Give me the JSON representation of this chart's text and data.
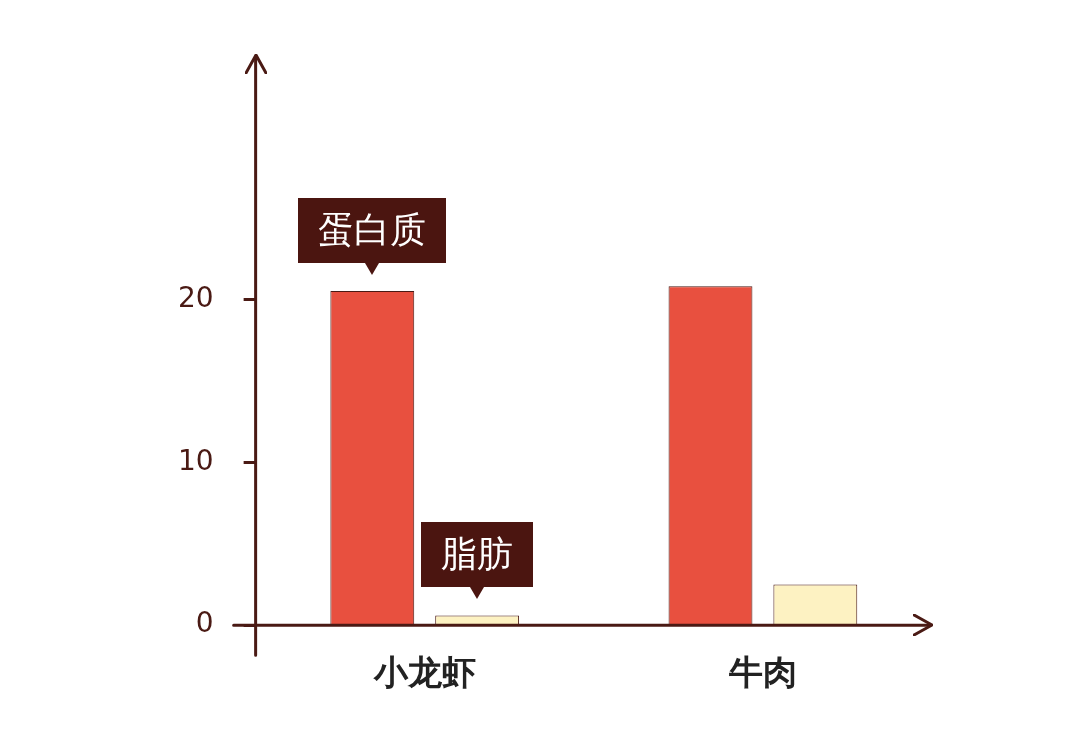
{
  "chart_data": {
    "type": "bar",
    "categories": [
      "小龙虾",
      "牛肉"
    ],
    "series": [
      {
        "name": "蛋白质",
        "color": "#e8503f",
        "values": [
          20.5,
          20.8
        ]
      },
      {
        "name": "脂肪",
        "color": "#fdf2c2",
        "values": [
          0.6,
          2.5
        ]
      }
    ],
    "ylim": [
      0,
      35
    ],
    "yticks": [
      0,
      10,
      20
    ],
    "grid": false,
    "legend": false
  }
}
